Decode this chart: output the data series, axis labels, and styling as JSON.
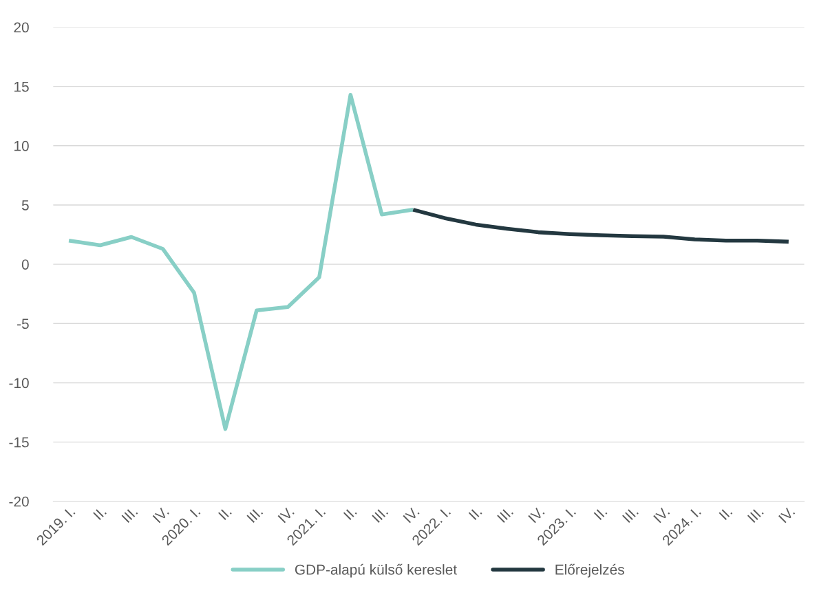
{
  "chart_data": {
    "type": "line",
    "categories": [
      "2019. I.",
      "II.",
      "III.",
      "IV.",
      "2020. I.",
      "II.",
      "III.",
      "IV.",
      "2021. I.",
      "II.",
      "III.",
      "IV.",
      "2022. I.",
      "II.",
      "III.",
      "IV.",
      "2023. I.",
      "II.",
      "III.",
      "IV.",
      "2024. I.",
      "II.",
      "III.",
      "IV."
    ],
    "series": [
      {
        "name": "GDP-alapú külső kereslet",
        "color": "#88cfc6",
        "values": [
          2.0,
          1.6,
          2.3,
          1.3,
          -2.4,
          -13.9,
          -3.9,
          -3.6,
          -1.1,
          14.3,
          4.2,
          4.6,
          null,
          null,
          null,
          null,
          null,
          null,
          null,
          null,
          null,
          null,
          null,
          null
        ]
      },
      {
        "name": "Előrejelzés",
        "color": "#233840",
        "values": [
          null,
          null,
          null,
          null,
          null,
          null,
          null,
          null,
          null,
          null,
          null,
          4.6,
          3.9,
          3.35,
          3.0,
          2.7,
          2.55,
          2.45,
          2.37,
          2.33,
          2.1,
          2.0,
          2.0,
          1.9
        ]
      }
    ],
    "ylim": [
      -20,
      20
    ],
    "yticks": [
      -20,
      -15,
      -10,
      -5,
      0,
      5,
      10,
      15,
      20
    ],
    "grid": "y",
    "legend": "bottom",
    "marker": "none",
    "line_style": "solid"
  }
}
